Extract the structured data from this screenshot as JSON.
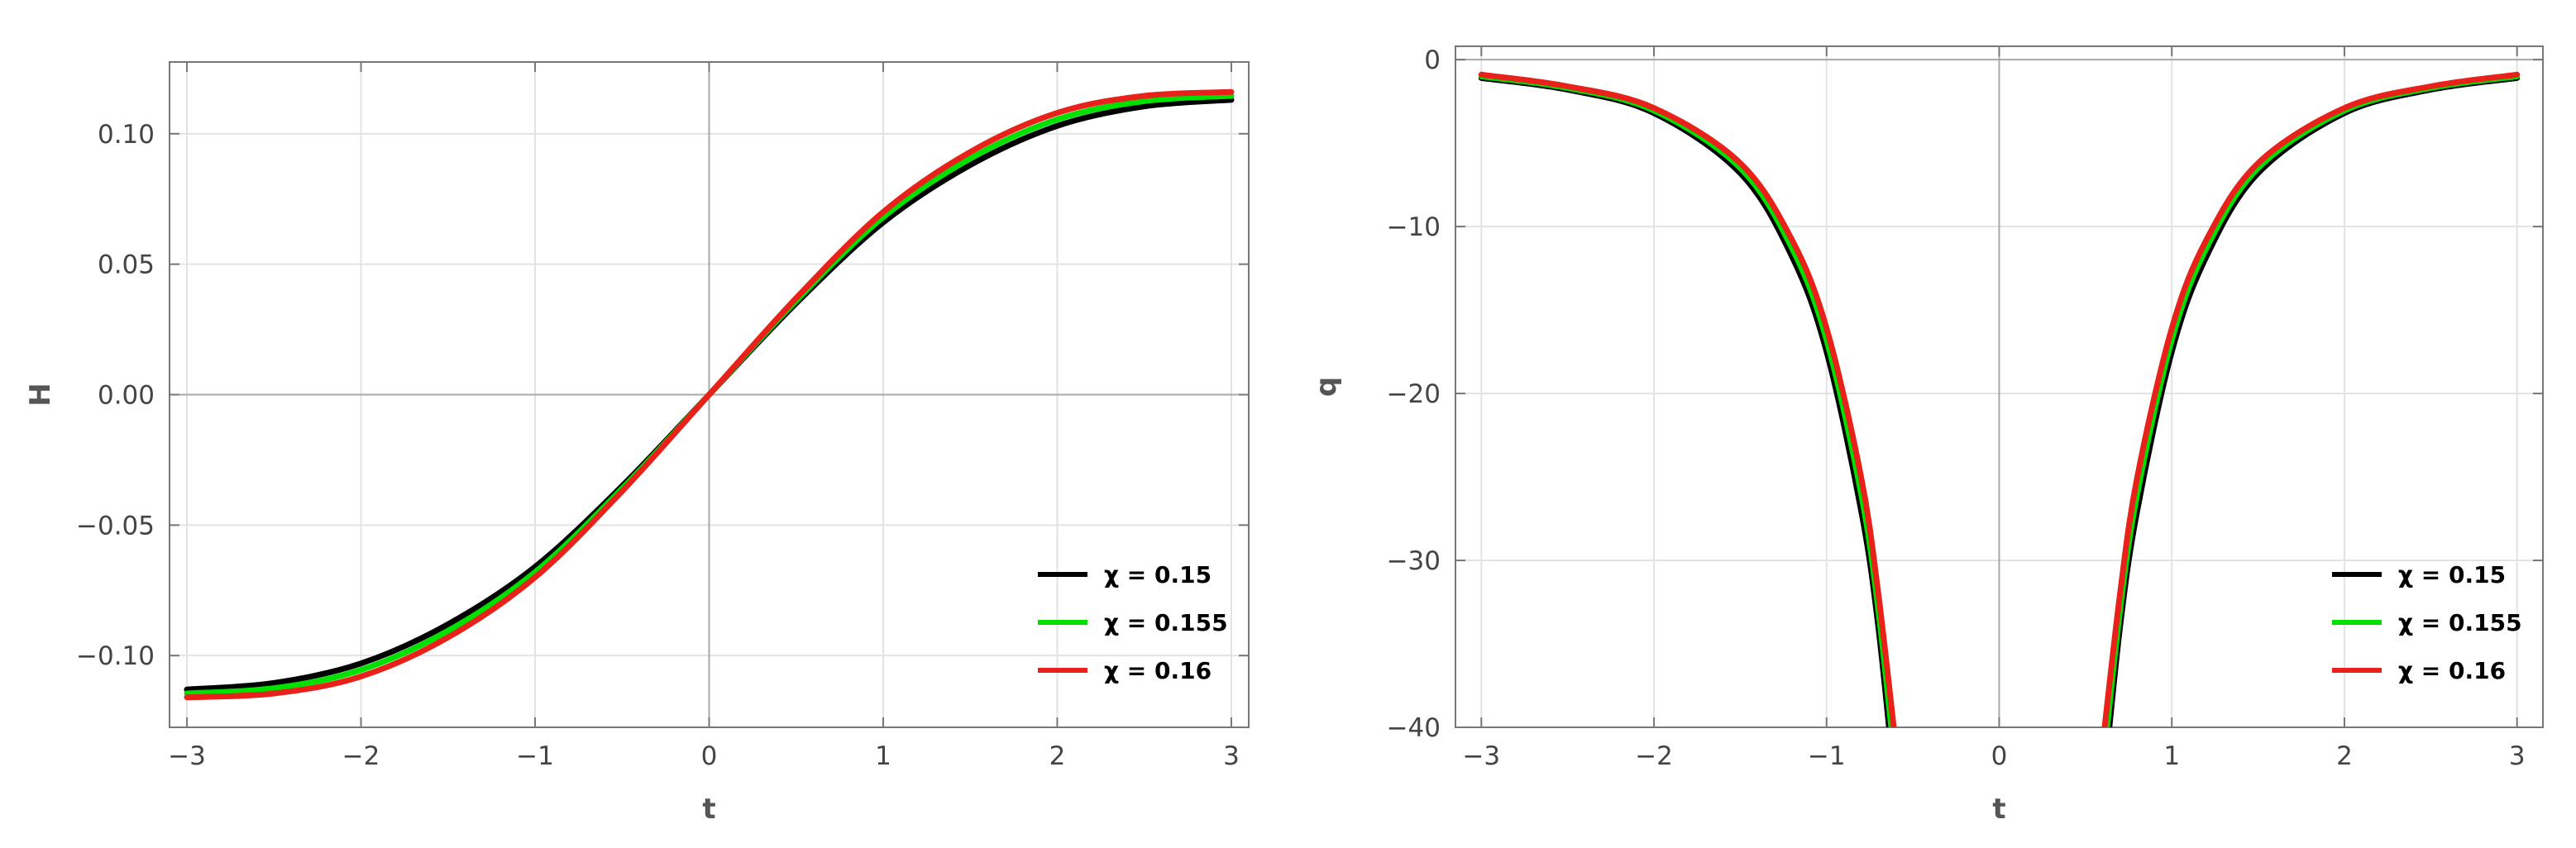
{
  "chart_data": [
    {
      "type": "line",
      "xlabel": "t",
      "ylabel": "H",
      "xlim": [
        -3.1,
        3.1
      ],
      "ylim": [
        -0.1275,
        0.1275
      ],
      "xticks": [
        -3,
        -2,
        -1,
        0,
        1,
        2,
        3
      ],
      "xtick_labels": [
        "−3",
        "−2",
        "−1",
        "0",
        "1",
        "2",
        "3"
      ],
      "yticks": [
        -0.1,
        -0.05,
        0,
        0.05,
        0.1
      ],
      "ytick_labels": [
        "−0.10",
        "−0.05",
        "0.00",
        "0.05",
        "0.10"
      ],
      "grid": true,
      "legend_position": "bottom-right",
      "x": [
        -3,
        -2.5,
        -2,
        -1.5,
        -1,
        -0.5,
        0,
        0.5,
        1,
        1.5,
        2,
        2.5,
        3
      ],
      "series": [
        {
          "name": "χ = 0.15",
          "color": "#000000",
          "y": [
            -0.113,
            -0.1105,
            -0.103,
            -0.088,
            -0.066,
            -0.035,
            0,
            0.035,
            0.066,
            0.088,
            0.103,
            0.1105,
            0.113
          ]
        },
        {
          "name": "χ = 0.155",
          "color": "#00e000",
          "y": [
            -0.1145,
            -0.1125,
            -0.1055,
            -0.0905,
            -0.068,
            -0.036,
            0,
            0.036,
            0.068,
            0.0905,
            0.1055,
            0.1125,
            0.1145
          ]
        },
        {
          "name": "χ = 0.16",
          "color": "#e8211a",
          "y": [
            -0.116,
            -0.1145,
            -0.108,
            -0.093,
            -0.07,
            -0.037,
            0,
            0.037,
            0.07,
            0.093,
            0.108,
            0.1145,
            0.116
          ]
        }
      ]
    },
    {
      "type": "line",
      "xlabel": "t",
      "ylabel": "q",
      "xlim": [
        -3.15,
        3.15
      ],
      "ylim": [
        -40,
        0.8
      ],
      "xticks": [
        -3,
        -2,
        -1,
        0,
        1,
        2,
        3
      ],
      "xtick_labels": [
        "−3",
        "−2",
        "−1",
        "0",
        "1",
        "2",
        "3"
      ],
      "yticks": [
        -40,
        -30,
        -20,
        -10,
        0
      ],
      "ytick_labels": [
        "−40",
        "−30",
        "−20",
        "−10",
        "0"
      ],
      "grid": true,
      "legend_position": "bottom-right",
      "x": [
        -3,
        -2.5,
        -2,
        -1.5,
        -1.2,
        -1,
        -0.8,
        -0.7,
        -0.6,
        0.6,
        0.7,
        0.8,
        1,
        1.2,
        1.5,
        2,
        2.5,
        3
      ],
      "series": [
        {
          "name": "χ = 0.15",
          "color": "#000000",
          "y": [
            -1.1,
            -1.8,
            -3.2,
            -6.8,
            -11.8,
            -17.5,
            -27,
            -34,
            -44,
            -44,
            -34,
            -27,
            -17.5,
            -11.8,
            -6.8,
            -3.2,
            -1.8,
            -1.1
          ]
        },
        {
          "name": "χ = 0.155",
          "color": "#00e000",
          "y": [
            -1.0,
            -1.7,
            -3.05,
            -6.5,
            -11.3,
            -16.8,
            -26,
            -33,
            -42.5,
            -42.5,
            -33,
            -26,
            -16.8,
            -11.3,
            -6.5,
            -3.05,
            -1.7,
            -1.0
          ]
        },
        {
          "name": "χ = 0.16",
          "color": "#e8211a",
          "y": [
            -0.9,
            -1.6,
            -2.9,
            -6.2,
            -10.8,
            -16.1,
            -25,
            -32,
            -41,
            -41,
            -32,
            -25,
            -16.1,
            -10.8,
            -6.2,
            -2.9,
            -1.6,
            -0.9
          ]
        }
      ]
    }
  ]
}
